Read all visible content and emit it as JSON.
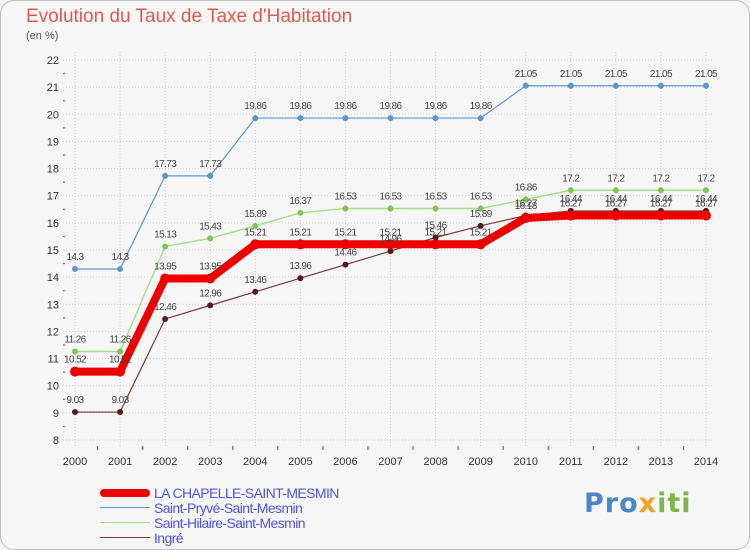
{
  "title": "Evolution du Taux de Taxe d'Habitation",
  "unit": "(en %)",
  "brand": "Proxiti",
  "colors": {
    "title": "#e05a4b",
    "legend_text": "#4f53e6",
    "grid": "#cfcfcf",
    "axis_ticks": "#e33b3b"
  },
  "chart_data": {
    "type": "line",
    "x": [
      "2000",
      "2001",
      "2002",
      "2003",
      "2004",
      "2005",
      "2006",
      "2007",
      "2008",
      "2009",
      "2010",
      "2011",
      "2012",
      "2013",
      "2014"
    ],
    "ylim": [
      8,
      22
    ],
    "yticks": [
      8,
      9,
      10,
      11,
      12,
      13,
      14,
      15,
      16,
      17,
      18,
      19,
      20,
      21,
      22
    ],
    "grid": true,
    "legend_position": "bottom-left",
    "series": [
      {
        "name": "Saint-Pryvé-Saint-Mesmin",
        "color": "#5b97cc",
        "width": 1.2,
        "marker": "#5b97cc",
        "values": [
          14.3,
          14.3,
          17.73,
          17.73,
          19.86,
          19.86,
          19.86,
          19.86,
          19.86,
          19.86,
          21.05,
          21.05,
          21.05,
          21.05,
          21.05
        ],
        "labels": [
          "14.3",
          "14.3",
          "17.73",
          "17.73",
          "19.86",
          "19.86",
          "19.86",
          "19.86",
          "19.86",
          "19.86",
          "21.05",
          "21.05",
          "21.05",
          "21.05",
          "21.05"
        ]
      },
      {
        "name": "Saint-Hilaire-Saint-Mesmin",
        "color": "#a5e08a",
        "width": 1.5,
        "marker": "#7cc655",
        "values": [
          11.26,
          11.26,
          15.13,
          15.43,
          15.89,
          16.37,
          16.53,
          16.53,
          16.53,
          16.53,
          16.86,
          17.2,
          17.2,
          17.2,
          17.2
        ],
        "labels": [
          "11.26",
          "11.26",
          "15.13",
          "15.43",
          "15.89",
          "16.37",
          "16.53",
          "16.53",
          "16.53",
          "16.53",
          "16.86",
          "17.2",
          "17.2",
          "17.2",
          "17.2"
        ]
      },
      {
        "name": "Ingré",
        "color": "#7b3a3a",
        "width": 1.2,
        "marker": "#5a1818",
        "values": [
          9.03,
          9.03,
          12.46,
          12.96,
          13.46,
          13.96,
          14.46,
          14.96,
          15.46,
          15.89,
          16.27,
          16.44,
          16.44,
          16.44,
          16.44
        ],
        "labels": [
          "9.03",
          "9.03",
          "12.46",
          "12.96",
          "13.46",
          "13.96",
          "14.46",
          "14.96",
          "15.46",
          "15.89",
          "16.27",
          "16.44",
          "16.44",
          "16.44",
          "16.44"
        ]
      },
      {
        "name": "LA CHAPELLE-SAINT-MESMIN",
        "color": "#ee0000",
        "width": 8,
        "marker": "#ee0000",
        "values": [
          10.52,
          10.52,
          13.95,
          13.95,
          15.21,
          15.21,
          15.21,
          15.21,
          15.21,
          15.21,
          16.18,
          16.27,
          16.27,
          16.27,
          16.27
        ],
        "labels": [
          "10.52",
          "10.52",
          "13.95",
          "13.95",
          "15.21",
          "15.21",
          "15.21",
          "15.21",
          "15.21",
          "15.21",
          "16.18",
          "16.27",
          "16.27",
          "16.27",
          "16.27"
        ]
      }
    ],
    "legend_order": [
      "LA CHAPELLE-SAINT-MESMIN",
      "Saint-Pryvé-Saint-Mesmin",
      "Saint-Hilaire-Saint-Mesmin",
      "Ingré"
    ]
  }
}
